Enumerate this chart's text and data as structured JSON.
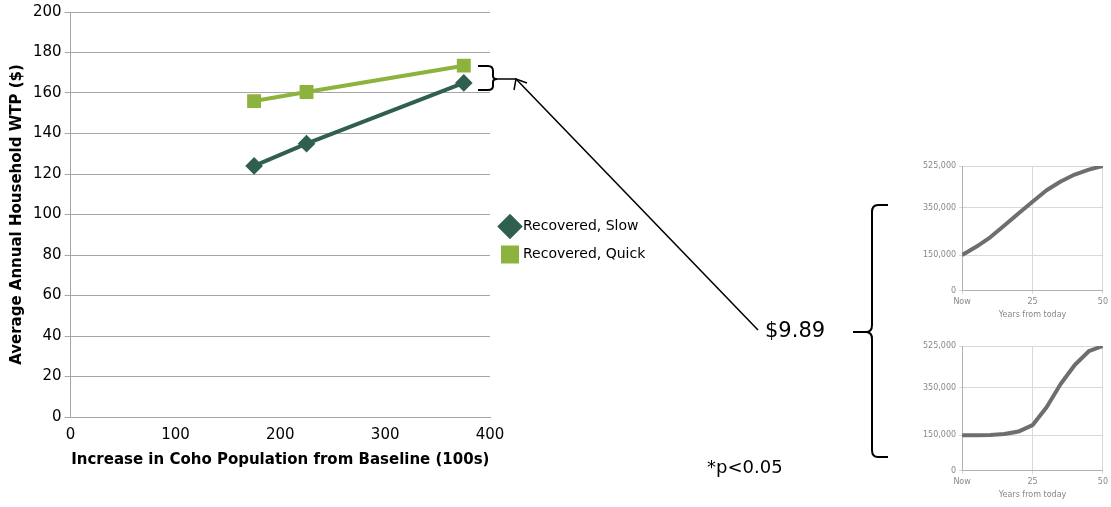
{
  "chart_data": [
    {
      "type": "line",
      "xlabel": "Increase in Coho Population from Baseline (100s)",
      "ylabel": "Average Annual Household WTP ($)",
      "series": [
        {
          "name": "Recovered, Slow",
          "color": "#2f5f4f",
          "marker": "diamond",
          "x": [
            175,
            225,
            375
          ],
          "values": [
            124,
            135,
            165
          ]
        },
        {
          "name": "Recovered, Quick",
          "color": "#8db33f",
          "marker": "square",
          "x": [
            175,
            225,
            375
          ],
          "values": [
            156,
            160.5,
            173.5
          ]
        }
      ],
      "xlim": [
        0,
        400
      ],
      "xticks": [
        0,
        100,
        200,
        300,
        400
      ],
      "ylim": [
        0,
        200
      ],
      "yticks": [
        0,
        20,
        40,
        60,
        80,
        100,
        120,
        140,
        160,
        180,
        200
      ],
      "grid": "y",
      "legend": "right",
      "annotations": [
        "$9.89",
        "*p<0.05"
      ]
    },
    {
      "type": "line",
      "xlabel": "Years from today",
      "marker": "none",
      "series": [
        {
          "color": "#6e6e6e",
          "x": [
            0,
            5,
            10,
            15,
            20,
            25,
            30,
            35,
            40,
            45,
            50
          ],
          "values": [
            150000,
            185000,
            225000,
            275000,
            325000,
            375000,
            423000,
            460000,
            489000,
            510000,
            525000
          ]
        }
      ],
      "xlim": [
        0,
        50
      ],
      "xticks": [
        {
          "value": 0,
          "label": "Now"
        },
        25,
        50
      ],
      "ylim": [
        0,
        525000
      ],
      "yticks": [
        0,
        {
          "value": 150000,
          "label": "150,000"
        },
        {
          "value": 350000,
          "label": "350,000"
        },
        {
          "value": 525000,
          "label": "525,000"
        }
      ],
      "grid": true,
      "legend": false
    },
    {
      "type": "line",
      "xlabel": "Years from today",
      "marker": "none",
      "series": [
        {
          "color": "#6e6e6e",
          "x": [
            0,
            5,
            10,
            15,
            20,
            25,
            30,
            35,
            40,
            45,
            50
          ],
          "values": [
            150000,
            150000,
            151000,
            155000,
            165000,
            192000,
            267000,
            365000,
            445000,
            503000,
            525000
          ]
        }
      ],
      "xlim": [
        0,
        50
      ],
      "xticks": [
        {
          "value": 0,
          "label": "Now"
        },
        25,
        50
      ],
      "ylim": [
        0,
        525000
      ],
      "yticks": [
        0,
        {
          "value": 150000,
          "label": "150,000"
        },
        {
          "value": 350000,
          "label": "350,000"
        },
        {
          "value": 525000,
          "label": "525,000"
        }
      ],
      "grid": true,
      "legend": false
    }
  ]
}
